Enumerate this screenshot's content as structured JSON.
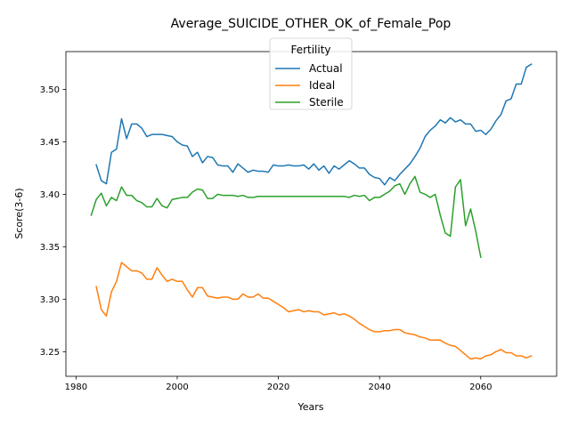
{
  "chart_data": {
    "type": "line",
    "title": "Average_SUICIDE_OTHER_OK_of_Female_Pop",
    "xlabel": "Years",
    "ylabel": "Score(3-6)",
    "xlim": [
      1978,
      2075
    ],
    "ylim": [
      3.2265,
      3.536
    ],
    "x_ticks": [
      1980,
      2000,
      2020,
      2040,
      2060
    ],
    "y_ticks": [
      3.25,
      3.3,
      3.35,
      3.4,
      3.45,
      3.5
    ],
    "x_tick_labels": [
      "1980",
      "2000",
      "2020",
      "2040",
      "2060"
    ],
    "y_tick_labels": [
      "3.25",
      "3.30",
      "3.35",
      "3.40",
      "3.45",
      "3.50"
    ],
    "grid": false,
    "legend": {
      "title": "Fertility",
      "position": "top-center"
    },
    "series": [
      {
        "name": "Actual",
        "color": "#1f77b4",
        "x": [
          1984,
          1985,
          1986,
          1987,
          1988,
          1989,
          1990,
          1991,
          1992,
          1993,
          1994,
          1995,
          1996,
          1997,
          1998,
          1999,
          2000,
          2001,
          2002,
          2003,
          2004,
          2005,
          2006,
          2007,
          2008,
          2009,
          2010,
          2011,
          2012,
          2013,
          2014,
          2015,
          2016,
          2017,
          2018,
          2019,
          2020,
          2021,
          2022,
          2023,
          2024,
          2025,
          2026,
          2027,
          2028,
          2029,
          2030,
          2031,
          2032,
          2033,
          2034,
          2035,
          2036,
          2037,
          2038,
          2039,
          2040,
          2041,
          2042,
          2043,
          2044,
          2045,
          2046,
          2047,
          2048,
          2049,
          2050,
          2051,
          2052,
          2053,
          2054,
          2055,
          2056,
          2057,
          2058,
          2059,
          2060,
          2061,
          2062,
          2063,
          2064,
          2065,
          2066,
          2067,
          2068,
          2069,
          2070
        ],
        "values": [
          3.428,
          3.413,
          3.41,
          3.44,
          3.443,
          3.472,
          3.453,
          3.467,
          3.467,
          3.463,
          3.455,
          3.457,
          3.457,
          3.457,
          3.456,
          3.455,
          3.45,
          3.447,
          3.446,
          3.436,
          3.44,
          3.43,
          3.436,
          3.435,
          3.428,
          3.427,
          3.427,
          3.421,
          3.429,
          3.425,
          3.421,
          3.423,
          3.422,
          3.422,
          3.421,
          3.428,
          3.427,
          3.427,
          3.428,
          3.427,
          3.427,
          3.428,
          3.424,
          3.429,
          3.423,
          3.427,
          3.42,
          3.427,
          3.424,
          3.428,
          3.432,
          3.429,
          3.425,
          3.425,
          3.419,
          3.416,
          3.415,
          3.409,
          3.416,
          3.413,
          3.419,
          3.424,
          3.429,
          3.436,
          3.444,
          3.455,
          3.461,
          3.465,
          3.471,
          3.468,
          3.473,
          3.469,
          3.471,
          3.467,
          3.467,
          3.46,
          3.461,
          3.457,
          3.462,
          3.47,
          3.476,
          3.489,
          3.491,
          3.505,
          3.505,
          3.521,
          3.524
        ]
      },
      {
        "name": "Ideal",
        "color": "#ff7f0e",
        "x": [
          1984,
          1985,
          1986,
          1987,
          1988,
          1989,
          1990,
          1991,
          1992,
          1993,
          1994,
          1995,
          1996,
          1997,
          1998,
          1999,
          2000,
          2001,
          2002,
          2003,
          2004,
          2005,
          2006,
          2007,
          2008,
          2009,
          2010,
          2011,
          2012,
          2013,
          2014,
          2015,
          2016,
          2017,
          2018,
          2019,
          2020,
          2021,
          2022,
          2023,
          2024,
          2025,
          2026,
          2027,
          2028,
          2029,
          2030,
          2031,
          2032,
          2033,
          2034,
          2035,
          2036,
          2037,
          2038,
          2039,
          2040,
          2041,
          2042,
          2043,
          2044,
          2045,
          2046,
          2047,
          2048,
          2049,
          2050,
          2051,
          2052,
          2053,
          2054,
          2055,
          2056,
          2057,
          2058,
          2059,
          2060,
          2061,
          2062,
          2063,
          2064,
          2065,
          2066,
          2067,
          2068,
          2069,
          2070
        ],
        "values": [
          3.312,
          3.29,
          3.284,
          3.307,
          3.317,
          3.335,
          3.331,
          3.327,
          3.327,
          3.325,
          3.319,
          3.319,
          3.33,
          3.323,
          3.317,
          3.319,
          3.317,
          3.317,
          3.309,
          3.302,
          3.311,
          3.311,
          3.303,
          3.302,
          3.301,
          3.302,
          3.302,
          3.3,
          3.3,
          3.305,
          3.302,
          3.302,
          3.305,
          3.301,
          3.301,
          3.298,
          3.295,
          3.292,
          3.288,
          3.289,
          3.29,
          3.288,
          3.289,
          3.288,
          3.288,
          3.285,
          3.286,
          3.287,
          3.285,
          3.286,
          3.284,
          3.281,
          3.277,
          3.274,
          3.271,
          3.269,
          3.269,
          3.27,
          3.27,
          3.271,
          3.271,
          3.268,
          3.267,
          3.266,
          3.264,
          3.263,
          3.261,
          3.261,
          3.261,
          3.258,
          3.256,
          3.255,
          3.251,
          3.247,
          3.243,
          3.244,
          3.243,
          3.246,
          3.247,
          3.25,
          3.252,
          3.249,
          3.249,
          3.246,
          3.246,
          3.244,
          3.246
        ]
      },
      {
        "name": "Sterile",
        "color": "#2ca02c",
        "x": [
          1983,
          1984,
          1985,
          1986,
          1987,
          1988,
          1989,
          1990,
          1991,
          1992,
          1993,
          1994,
          1995,
          1996,
          1997,
          1998,
          1999,
          2000,
          2001,
          2002,
          2003,
          2004,
          2005,
          2006,
          2007,
          2008,
          2009,
          2010,
          2011,
          2012,
          2013,
          2014,
          2015,
          2016,
          2017,
          2018,
          2019,
          2020,
          2021,
          2022,
          2023,
          2024,
          2025,
          2026,
          2027,
          2028,
          2029,
          2030,
          2031,
          2032,
          2033,
          2034,
          2035,
          2036,
          2037,
          2038,
          2039,
          2040,
          2041,
          2042,
          2043,
          2044,
          2045,
          2046,
          2047,
          2048,
          2049,
          2050,
          2051,
          2052,
          2053,
          2054,
          2055,
          2056,
          2057,
          2058,
          2059,
          2060
        ],
        "values": [
          3.38,
          3.395,
          3.401,
          3.389,
          3.397,
          3.394,
          3.407,
          3.399,
          3.399,
          3.394,
          3.392,
          3.388,
          3.388,
          3.396,
          3.389,
          3.387,
          3.395,
          3.396,
          3.397,
          3.397,
          3.402,
          3.405,
          3.404,
          3.396,
          3.396,
          3.4,
          3.399,
          3.399,
          3.399,
          3.398,
          3.399,
          3.397,
          3.397,
          3.398,
          3.398,
          3.398,
          3.398,
          3.398,
          3.398,
          3.398,
          3.398,
          3.398,
          3.398,
          3.398,
          3.398,
          3.398,
          3.398,
          3.398,
          3.398,
          3.398,
          3.398,
          3.397,
          3.399,
          3.398,
          3.399,
          3.394,
          3.397,
          3.397,
          3.4,
          3.403,
          3.408,
          3.41,
          3.4,
          3.41,
          3.417,
          3.402,
          3.4,
          3.397,
          3.4,
          3.38,
          3.363,
          3.36,
          3.407,
          3.414,
          3.37,
          3.386,
          3.365,
          3.34
        ]
      }
    ]
  }
}
